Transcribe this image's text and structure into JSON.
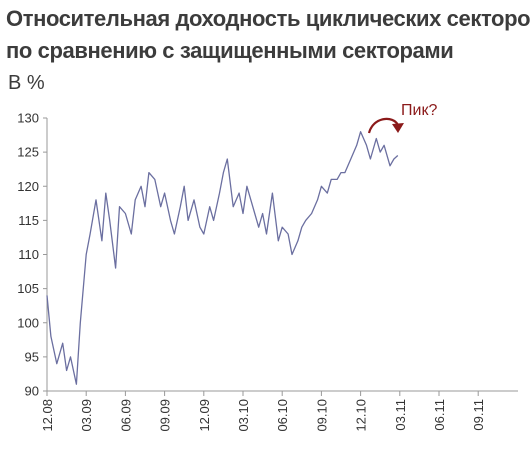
{
  "title_line1": "Относительная доходность циклических секторов",
  "title_line2": "по сравнению с защищенными секторами",
  "units": "В %",
  "annotation": "Пик?",
  "colors": {
    "line": "#6b6fa0",
    "annotation": "#8b1a1a",
    "axis": "#999999"
  },
  "chart_data": {
    "type": "line",
    "title": "Относительная доходность циклических секторов по сравнению с защищенными секторами",
    "ylabel": "В %",
    "ylim": [
      90,
      130
    ],
    "yticks": [
      90,
      95,
      100,
      105,
      110,
      115,
      120,
      125,
      130
    ],
    "xticks": [
      "12.08",
      "03.09",
      "06.09",
      "09.09",
      "12.09",
      "03.10",
      "06.10",
      "09.10",
      "12.10",
      "03.11",
      "06.11",
      "09.11"
    ],
    "grid": false,
    "series": [
      {
        "x": [
          0,
          0.1,
          0.25,
          0.4,
          0.5,
          0.6,
          0.75,
          0.85,
          1.0,
          1.1,
          1.25,
          1.4,
          1.5,
          1.6,
          1.75,
          1.85,
          2.0,
          2.15,
          2.25,
          2.4,
          2.5,
          2.6,
          2.75,
          2.9,
          3.0,
          3.15,
          3.25,
          3.4,
          3.5,
          3.6,
          3.75,
          3.9,
          4.0,
          4.15,
          4.25,
          4.4,
          4.5,
          4.6,
          4.75,
          4.9,
          5.0,
          5.1,
          5.25,
          5.4,
          5.5,
          5.6,
          5.75,
          5.9,
          6.0,
          6.15,
          6.25,
          6.4,
          6.5,
          6.6,
          6.75,
          6.9,
          7.0,
          7.15,
          7.25,
          7.4,
          7.5,
          7.6,
          7.75,
          7.9,
          8.0,
          8.15,
          8.25,
          8.4,
          8.5,
          8.6,
          8.75,
          8.85,
          8.95
        ],
        "values": [
          104,
          98,
          94,
          97,
          93,
          95,
          91,
          100,
          110,
          113,
          118,
          112,
          119,
          115,
          108,
          117,
          116,
          113,
          118,
          120,
          117,
          122,
          121,
          117,
          119,
          115,
          113,
          117,
          120,
          115,
          118,
          114,
          113,
          117,
          115,
          119,
          122,
          124,
          117,
          119,
          116,
          120,
          117,
          114,
          116,
          113,
          119,
          112,
          114,
          113,
          110,
          112,
          114,
          115,
          116,
          118,
          120,
          119,
          121,
          121,
          122,
          122,
          124,
          126,
          128,
          126,
          124,
          127,
          125,
          126,
          123,
          124,
          124.5
        ]
      }
    ]
  }
}
